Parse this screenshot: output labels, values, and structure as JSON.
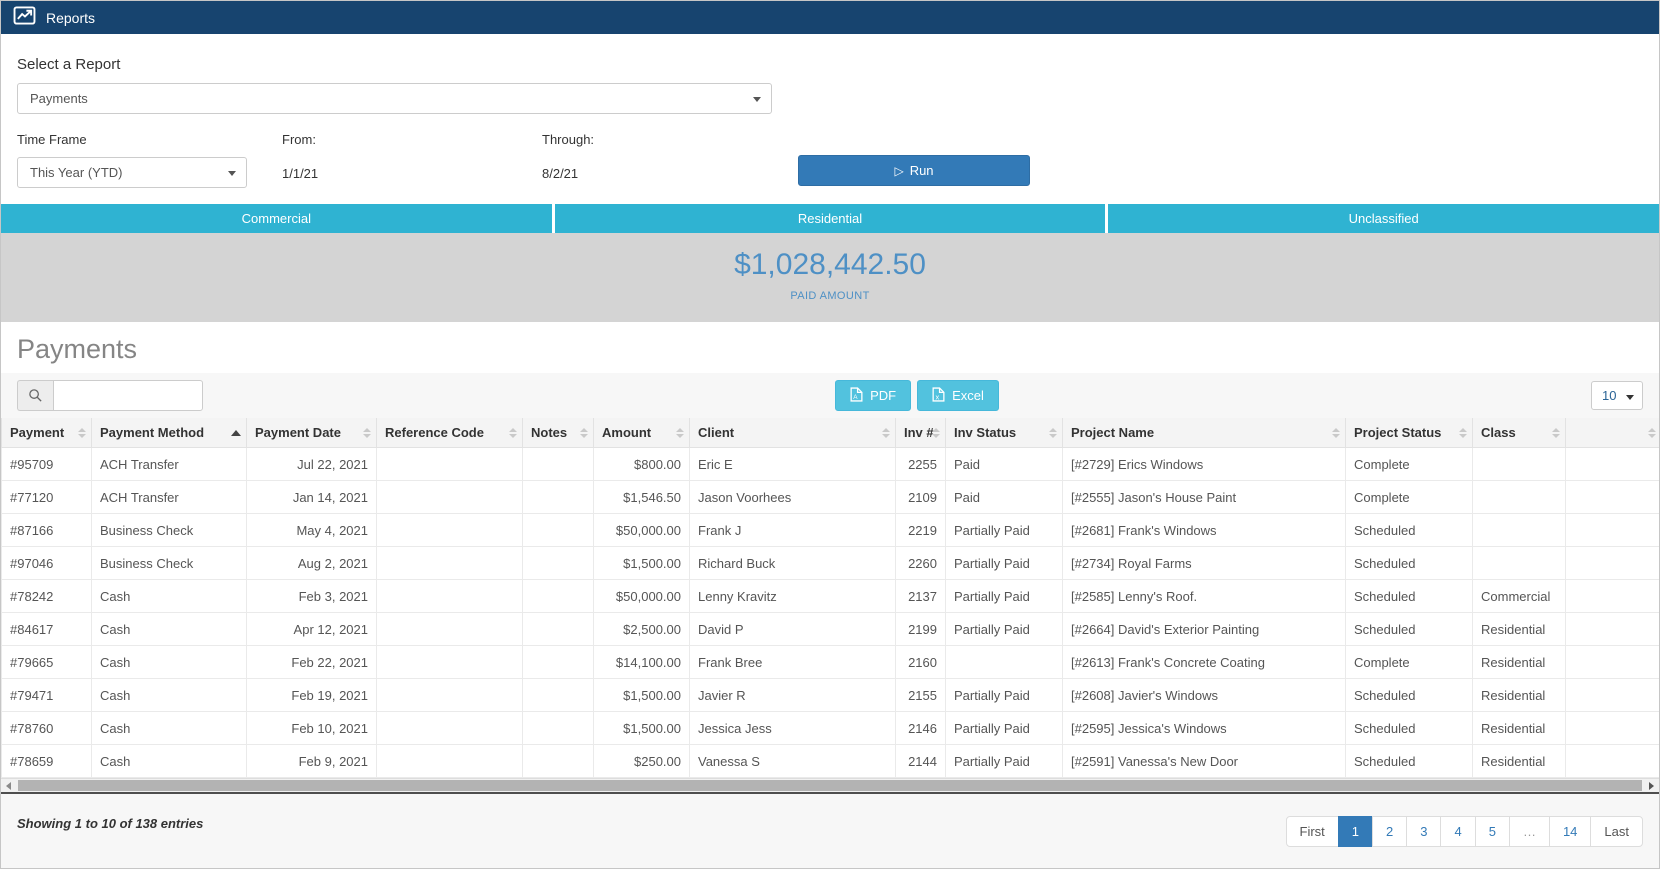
{
  "header": {
    "title": "Reports"
  },
  "report_selector": {
    "label": "Select a Report",
    "value": "Payments"
  },
  "filters": {
    "time_frame_label": "Time Frame",
    "time_frame_value": "This Year (YTD)",
    "from_label": "From:",
    "from_value": "1/1/21",
    "through_label": "Through:",
    "through_value": "8/2/21",
    "run_label": "Run"
  },
  "tabs": [
    {
      "label": "Commercial"
    },
    {
      "label": "Residential"
    },
    {
      "label": "Unclassified"
    }
  ],
  "summary": {
    "amount": "$1,028,442.50",
    "caption": "PAID AMOUNT"
  },
  "section": {
    "title": "Payments"
  },
  "toolbar": {
    "search_value": "",
    "pdf_label": "PDF",
    "excel_label": "Excel",
    "page_size": "10"
  },
  "table": {
    "columns": [
      {
        "label": "Payment",
        "sort": "both"
      },
      {
        "label": "Payment Method",
        "sort": "asc"
      },
      {
        "label": "Payment Date",
        "sort": "both"
      },
      {
        "label": "Reference Code",
        "sort": "both"
      },
      {
        "label": "Notes",
        "sort": "both"
      },
      {
        "label": "Amount",
        "sort": "both"
      },
      {
        "label": "Client",
        "sort": "both"
      },
      {
        "label": "Inv #",
        "sort": "both"
      },
      {
        "label": "Inv Status",
        "sort": "both"
      },
      {
        "label": "Project Name",
        "sort": "both"
      },
      {
        "label": "Project Status",
        "sort": "both"
      },
      {
        "label": "Class",
        "sort": "both"
      },
      {
        "label": "",
        "sort": "both"
      }
    ],
    "align": [
      "left",
      "left",
      "right",
      "left",
      "left",
      "right",
      "left",
      "right",
      "left",
      "left",
      "left",
      "left",
      "left"
    ],
    "rows": [
      [
        "#95709",
        "ACH Transfer",
        "Jul 22, 2021",
        "",
        "",
        "$800.00",
        "Eric E",
        "2255",
        "Paid",
        "[#2729] Erics Windows",
        "Complete",
        ""
      ],
      [
        "#77120",
        "ACH Transfer",
        "Jan 14, 2021",
        "",
        "",
        "$1,546.50",
        "Jason Voorhees",
        "2109",
        "Paid",
        "[#2555] Jason's House Paint",
        "Complete",
        ""
      ],
      [
        "#87166",
        "Business Check",
        "May 4, 2021",
        "",
        "",
        "$50,000.00",
        "Frank J",
        "2219",
        "Partially Paid",
        "[#2681] Frank's Windows",
        "Scheduled",
        ""
      ],
      [
        "#97046",
        "Business Check",
        "Aug 2, 2021",
        "",
        "",
        "$1,500.00",
        "Richard Buck",
        "2260",
        "Partially Paid",
        "[#2734] Royal Farms",
        "Scheduled",
        ""
      ],
      [
        "#78242",
        "Cash",
        "Feb 3, 2021",
        "",
        "",
        "$50,000.00",
        "Lenny Kravitz",
        "2137",
        "Partially Paid",
        "[#2585] Lenny's Roof.",
        "Scheduled",
        "Commercial"
      ],
      [
        "#84617",
        "Cash",
        "Apr 12, 2021",
        "",
        "",
        "$2,500.00",
        "David P",
        "2199",
        "Partially Paid",
        "[#2664] David's Exterior Painting",
        "Scheduled",
        "Residential"
      ],
      [
        "#79665",
        "Cash",
        "Feb 22, 2021",
        "",
        "",
        "$14,100.00",
        "Frank Bree",
        "2160",
        "",
        "[#2613] Frank's Concrete Coating",
        "Complete",
        "Residential"
      ],
      [
        "#79471",
        "Cash",
        "Feb 19, 2021",
        "",
        "",
        "$1,500.00",
        "Javier R",
        "2155",
        "Partially Paid",
        "[#2608] Javier's Windows",
        "Scheduled",
        "Residential"
      ],
      [
        "#78760",
        "Cash",
        "Feb 10, 2021",
        "",
        "",
        "$1,500.00",
        "Jessica Jess",
        "2146",
        "Partially Paid",
        "[#2595] Jessica's Windows",
        "Scheduled",
        "Residential"
      ],
      [
        "#78659",
        "Cash",
        "Feb 9, 2021",
        "",
        "",
        "$250.00",
        "Vanessa S",
        "2144",
        "Partially Paid",
        "[#2591] Vanessa's New Door",
        "Scheduled",
        "Residential"
      ]
    ]
  },
  "footer": {
    "showing_text": "Showing 1 to 10 of 138 entries",
    "pagination": [
      "First",
      "1",
      "2",
      "3",
      "4",
      "5",
      "…",
      "14",
      "Last"
    ],
    "active_page": "1"
  },
  "colors": {
    "topbar": "#17446f",
    "tab_teal": "#2fb3d2",
    "export_teal": "#52c2de",
    "primary_blue": "#337ab7",
    "summary_band": "#d4d4d4",
    "summary_text": "#4e90c5"
  }
}
